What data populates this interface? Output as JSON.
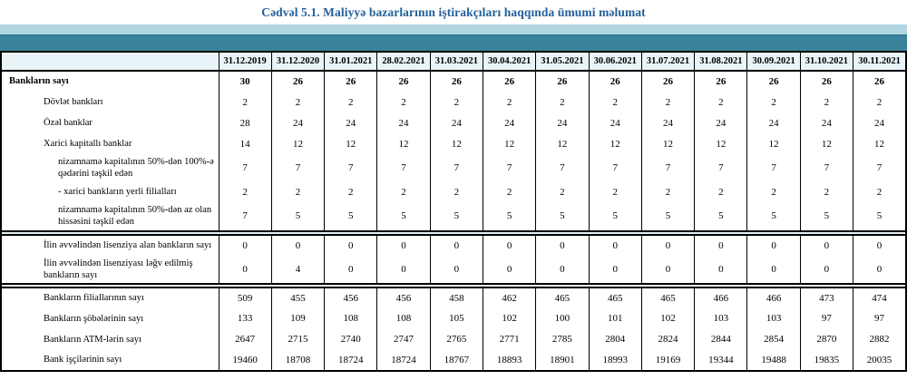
{
  "title": "Cədvəl 5.1. Maliyyə bazarlarının iştirakçıları haqqında ümumi məlumat",
  "colors": {
    "title_text": "#24609b",
    "band_light_blue": "#b0d7e2",
    "band_teal": "#39839a",
    "header_row_bg": "#e9f4f8",
    "separator_bg": "#e8f2f7",
    "border": "#000000"
  },
  "table": {
    "column_headers": [
      "31.12.2019",
      "31.12.2020",
      "31.01.2021",
      "28.02.2021",
      "31.03.2021",
      "30.04.2021",
      "31.05.2021",
      "30.06.2021",
      "31.07.2021",
      "31.08.2021",
      "30.09.2021",
      "31.10.2021",
      "30.11.2021"
    ],
    "sections": [
      {
        "rows": [
          {
            "label": "Bankların sayı",
            "indent": 1,
            "bold": true,
            "values": [
              30,
              26,
              26,
              26,
              26,
              26,
              26,
              26,
              26,
              26,
              26,
              26,
              26
            ]
          },
          {
            "label": "Dövlət bankları",
            "indent": 2,
            "bold": false,
            "values": [
              2,
              2,
              2,
              2,
              2,
              2,
              2,
              2,
              2,
              2,
              2,
              2,
              2
            ]
          },
          {
            "label": "Özəl banklar",
            "indent": 2,
            "bold": false,
            "values": [
              28,
              24,
              24,
              24,
              24,
              24,
              24,
              24,
              24,
              24,
              24,
              24,
              24
            ]
          },
          {
            "label": "Xarici kapitallı banklar",
            "indent": 2,
            "bold": false,
            "values": [
              14,
              12,
              12,
              12,
              12,
              12,
              12,
              12,
              12,
              12,
              12,
              12,
              12
            ]
          },
          {
            "label": "nizamnamə kapitalının 50%-dən 100%-ə qədərini təşkil edən",
            "indent": 3,
            "bold": false,
            "values": [
              7,
              7,
              7,
              7,
              7,
              7,
              7,
              7,
              7,
              7,
              7,
              7,
              7
            ]
          },
          {
            "label": "-  xarici bankların yerli filialları",
            "indent": 3,
            "bold": false,
            "values": [
              2,
              2,
              2,
              2,
              2,
              2,
              2,
              2,
              2,
              2,
              2,
              2,
              2
            ]
          },
          {
            "label": "nizamnamə kapitalının 50%-dən az olan hissəsini  təşkil edən",
            "indent": 3,
            "bold": false,
            "values": [
              7,
              5,
              5,
              5,
              5,
              5,
              5,
              5,
              5,
              5,
              5,
              5,
              5
            ]
          }
        ]
      },
      {
        "rows": [
          {
            "label": "İlin əvvəlindən lisenziya alan bankların sayı",
            "indent": 2,
            "bold": false,
            "values": [
              0,
              0,
              0,
              0,
              0,
              0,
              0,
              0,
              0,
              0,
              0,
              0,
              0
            ]
          },
          {
            "label": "İlin əvvəlindən lisenziyası ləğv edilmiş bankların sayı",
            "indent": 2,
            "bold": false,
            "values": [
              0,
              4,
              0,
              0,
              0,
              0,
              0,
              0,
              0,
              0,
              0,
              0,
              0
            ]
          }
        ]
      },
      {
        "rows": [
          {
            "label": "Bankların filiallarının sayı",
            "indent": 2,
            "bold": false,
            "values": [
              509,
              455,
              456,
              456,
              458,
              462,
              465,
              465,
              465,
              466,
              466,
              473,
              474
            ]
          },
          {
            "label": "Bankların şöbələrinin sayı",
            "indent": 2,
            "bold": false,
            "values": [
              133,
              109,
              108,
              108,
              105,
              102,
              100,
              101,
              102,
              103,
              103,
              97,
              97
            ]
          },
          {
            "label": "Bankların ATM-lərin sayı",
            "indent": 2,
            "bold": false,
            "values": [
              2647,
              2715,
              2740,
              2747,
              2765,
              2771,
              2785,
              2804,
              2824,
              2844,
              2854,
              2870,
              2882
            ]
          },
          {
            "label": "Bank işçilərinin sayı",
            "indent": 2,
            "bold": false,
            "values": [
              19460,
              18708,
              18724,
              18724,
              18767,
              18893,
              18901,
              18993,
              19169,
              19344,
              19488,
              19835,
              20035
            ]
          }
        ]
      }
    ]
  }
}
